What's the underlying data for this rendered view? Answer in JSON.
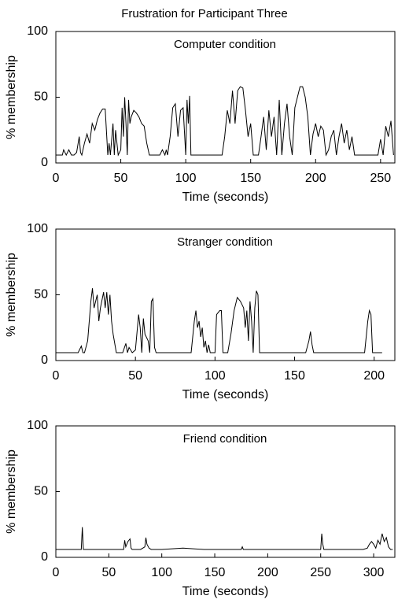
{
  "title": "Frustration for Participant Three",
  "chart_data": [
    {
      "type": "line",
      "title": "Computer condition",
      "xlabel": "Time (seconds)",
      "ylabel": "% membership",
      "xlim": [
        0,
        261
      ],
      "ylim": [
        0,
        100
      ],
      "xticks": [
        0,
        50,
        100,
        150,
        200,
        250
      ],
      "yticks": [
        0,
        50,
        100
      ],
      "color": "#000000",
      "x": [
        0,
        5,
        6,
        8,
        10,
        12,
        14,
        16,
        18,
        19,
        20,
        22,
        24,
        26,
        28,
        30,
        32,
        34,
        36,
        38,
        40,
        41,
        42,
        44,
        45,
        46,
        48,
        50,
        51,
        52,
        53,
        54,
        55,
        56,
        57,
        58,
        60,
        62,
        64,
        66,
        68,
        70,
        72,
        74,
        76,
        78,
        80,
        82,
        84,
        85,
        86,
        88,
        90,
        92,
        94,
        96,
        98,
        100,
        101,
        102,
        103,
        104,
        106,
        108,
        110,
        115,
        120,
        125,
        128,
        130,
        132,
        134,
        136,
        138,
        140,
        142,
        144,
        146,
        148,
        150,
        152,
        154,
        156,
        158,
        160,
        162,
        164,
        166,
        168,
        170,
        172,
        174,
        176,
        178,
        180,
        182,
        184,
        186,
        188,
        190,
        192,
        194,
        196,
        198,
        200,
        202,
        204,
        206,
        208,
        210,
        212,
        214,
        216,
        218,
        220,
        222,
        224,
        226,
        228,
        230,
        235,
        240,
        245,
        248,
        250,
        252,
        254,
        256,
        258,
        260
      ],
      "values": [
        6,
        6,
        10,
        6,
        10,
        6,
        6,
        8,
        20,
        8,
        6,
        15,
        22,
        15,
        30,
        25,
        33,
        38,
        41,
        41,
        6,
        15,
        6,
        30,
        6,
        25,
        6,
        10,
        42,
        20,
        50,
        30,
        6,
        48,
        30,
        35,
        40,
        38,
        35,
        30,
        28,
        15,
        6,
        6,
        6,
        6,
        6,
        10,
        6,
        10,
        6,
        20,
        42,
        45,
        20,
        40,
        42,
        6,
        48,
        30,
        51,
        6,
        6,
        6,
        6,
        6,
        6,
        6,
        6,
        20,
        40,
        30,
        55,
        30,
        55,
        58,
        57,
        40,
        20,
        30,
        6,
        6,
        6,
        20,
        35,
        10,
        40,
        20,
        35,
        6,
        48,
        6,
        30,
        45,
        20,
        6,
        42,
        50,
        58,
        58,
        50,
        35,
        6,
        22,
        30,
        20,
        28,
        25,
        6,
        10,
        20,
        25,
        6,
        20,
        30,
        15,
        25,
        10,
        20,
        6,
        6,
        6,
        6,
        6,
        18,
        6,
        28,
        20,
        32,
        6
      ]
    },
    {
      "type": "line",
      "title": "Stranger condition",
      "xlabel": "Time (seconds)",
      "ylabel": "% membership",
      "xlim": [
        0,
        213
      ],
      "ylim": [
        0,
        100
      ],
      "xticks": [
        0,
        50,
        100,
        150,
        200
      ],
      "yticks": [
        0,
        50,
        100
      ],
      "color": "#000000",
      "x": [
        0,
        5,
        10,
        14,
        16,
        17,
        18,
        20,
        22,
        23,
        24,
        26,
        27,
        28,
        30,
        31,
        32,
        33,
        34,
        35,
        36,
        38,
        40,
        42,
        44,
        45,
        46,
        48,
        50,
        52,
        53,
        54,
        55,
        56,
        58,
        59,
        60,
        61,
        62,
        63,
        65,
        70,
        75,
        80,
        85,
        87,
        88,
        89,
        90,
        91,
        92,
        93,
        94,
        95,
        96,
        97,
        100,
        101,
        103,
        104,
        105,
        108,
        110,
        112,
        114,
        116,
        118,
        119,
        120,
        121,
        122,
        123,
        124,
        125,
        126,
        127,
        128,
        130,
        140,
        150,
        157,
        159,
        160,
        161,
        162,
        170,
        180,
        190,
        194,
        196,
        197,
        198,
        199,
        205
      ],
      "values": [
        6,
        6,
        6,
        6,
        11,
        6,
        6,
        15,
        45,
        55,
        40,
        50,
        30,
        40,
        52,
        40,
        52,
        35,
        50,
        30,
        20,
        6,
        6,
        6,
        13,
        6,
        10,
        6,
        8,
        35,
        25,
        6,
        32,
        20,
        15,
        6,
        45,
        47,
        10,
        6,
        6,
        6,
        6,
        6,
        6,
        30,
        38,
        25,
        30,
        18,
        25,
        10,
        15,
        6,
        12,
        6,
        6,
        35,
        38,
        38,
        6,
        6,
        20,
        38,
        48,
        45,
        40,
        25,
        38,
        15,
        45,
        30,
        6,
        40,
        53,
        50,
        6,
        6,
        6,
        6,
        6,
        15,
        22,
        12,
        6,
        6,
        6,
        6,
        6,
        30,
        38,
        35,
        6,
        6
      ]
    },
    {
      "type": "line",
      "title": "Friend condition",
      "xlabel": "Time (seconds)",
      "ylabel": "% membership",
      "xlim": [
        0,
        320
      ],
      "ylim": [
        0,
        100
      ],
      "xticks": [
        0,
        50,
        100,
        150,
        200,
        250,
        300
      ],
      "yticks": [
        0,
        50,
        100
      ],
      "color": "#000000",
      "x": [
        0,
        10,
        20,
        24,
        25,
        26,
        30,
        40,
        50,
        60,
        64,
        65,
        66,
        68,
        70,
        71,
        72,
        80,
        84,
        85,
        86,
        88,
        90,
        100,
        120,
        140,
        160,
        175,
        176,
        177,
        200,
        220,
        240,
        250,
        251,
        252,
        253,
        270,
        290,
        294,
        296,
        298,
        300,
        302,
        304,
        306,
        308,
        310,
        312,
        314,
        316,
        318
      ],
      "values": [
        6,
        6,
        6,
        6,
        23,
        6,
        6,
        6,
        6,
        6,
        6,
        13,
        8,
        12,
        14,
        7,
        6,
        6,
        8,
        15,
        10,
        7,
        6,
        6,
        7,
        6,
        6,
        6,
        8,
        6,
        6,
        6,
        6,
        6,
        18,
        10,
        6,
        6,
        6,
        7,
        10,
        12,
        10,
        7,
        13,
        10,
        18,
        12,
        15,
        8,
        6,
        6
      ]
    }
  ]
}
